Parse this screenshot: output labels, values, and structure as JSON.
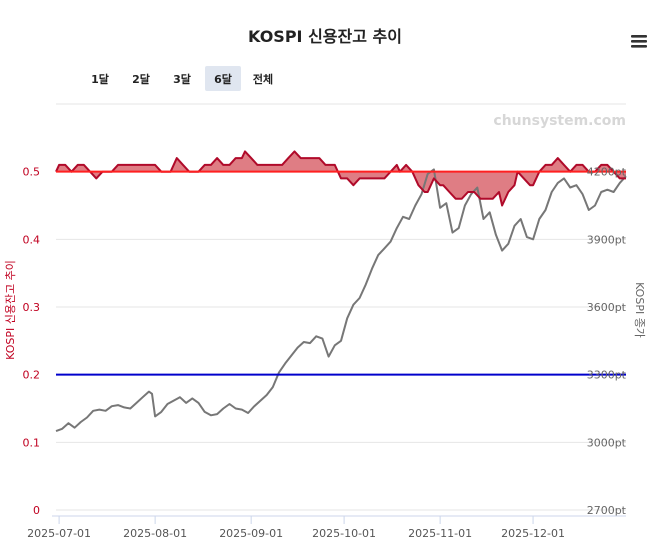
{
  "title": "KOSPI 신용잔고 추이",
  "watermark": "chunsystem.com",
  "range_buttons": [
    {
      "label": "1달",
      "selected": false
    },
    {
      "label": "2달",
      "selected": false
    },
    {
      "label": "3달",
      "selected": false
    },
    {
      "label": "6달",
      "selected": true
    },
    {
      "label": "전체",
      "selected": false
    }
  ],
  "menu_icon": "hamburger-menu-icon",
  "colors": {
    "credit_line": "#b00a2a",
    "credit_fill": "#d9666f",
    "credit_ref_line": "#ff2020",
    "kospi_line": "#777777",
    "kospi_ref_line": "#0000cc",
    "button_selected_bg": "#e0e6f0"
  },
  "chart_data": {
    "type": "line",
    "title": "KOSPI 신용잔고 추이",
    "x_start": "2025-06-30",
    "x_end": "2025-12-31",
    "x_tick_labels": [
      "2025-07-01",
      "2025-08-01",
      "2025-09-01",
      "2025-10-01",
      "2025-11-01",
      "2025-12-01"
    ],
    "y_left": {
      "label": "KOSPI 신용잔고 추이",
      "range": [
        0,
        0.6
      ],
      "ticks": [
        "0",
        "0.1",
        "0.2",
        "0.3",
        "0.4",
        "0.5"
      ]
    },
    "y_right": {
      "label": "KOSPI 종가",
      "range": [
        2700,
        4500
      ],
      "ticks": [
        "2700pt",
        "3000pt",
        "3300pt",
        "3600pt",
        "3900pt",
        "4200pt"
      ]
    },
    "reference_lines": {
      "credit": 0.5,
      "kospi": 3300
    },
    "series": [
      {
        "axis": "left",
        "style": "area-around-reference",
        "points": [
          [
            "2025-06-30",
            0.5
          ],
          [
            "2025-07-01",
            0.51
          ],
          [
            "2025-07-03",
            0.51
          ],
          [
            "2025-07-05",
            0.5
          ],
          [
            "2025-07-07",
            0.51
          ],
          [
            "2025-07-09",
            0.51
          ],
          [
            "2025-07-11",
            0.5
          ],
          [
            "2025-07-13",
            0.49
          ],
          [
            "2025-07-15",
            0.5
          ],
          [
            "2025-07-18",
            0.5
          ],
          [
            "2025-07-20",
            0.51
          ],
          [
            "2025-07-23",
            0.51
          ],
          [
            "2025-07-26",
            0.51
          ],
          [
            "2025-07-29",
            0.51
          ],
          [
            "2025-08-01",
            0.51
          ],
          [
            "2025-08-03",
            0.5
          ],
          [
            "2025-08-06",
            0.5
          ],
          [
            "2025-08-08",
            0.52
          ],
          [
            "2025-08-10",
            0.51
          ],
          [
            "2025-08-12",
            0.5
          ],
          [
            "2025-08-15",
            0.5
          ],
          [
            "2025-08-17",
            0.51
          ],
          [
            "2025-08-19",
            0.51
          ],
          [
            "2025-08-21",
            0.52
          ],
          [
            "2025-08-23",
            0.51
          ],
          [
            "2025-08-25",
            0.51
          ],
          [
            "2025-08-27",
            0.52
          ],
          [
            "2025-08-29",
            0.52
          ],
          [
            "2025-08-30",
            0.53
          ],
          [
            "2025-09-01",
            0.52
          ],
          [
            "2025-09-03",
            0.51
          ],
          [
            "2025-09-05",
            0.51
          ],
          [
            "2025-09-08",
            0.51
          ],
          [
            "2025-09-11",
            0.51
          ],
          [
            "2025-09-13",
            0.52
          ],
          [
            "2025-09-15",
            0.53
          ],
          [
            "2025-09-17",
            0.52
          ],
          [
            "2025-09-20",
            0.52
          ],
          [
            "2025-09-23",
            0.52
          ],
          [
            "2025-09-25",
            0.51
          ],
          [
            "2025-09-28",
            0.51
          ],
          [
            "2025-09-30",
            0.49
          ],
          [
            "2025-10-02",
            0.49
          ],
          [
            "2025-10-04",
            0.48
          ],
          [
            "2025-10-06",
            0.49
          ],
          [
            "2025-10-09",
            0.49
          ],
          [
            "2025-10-12",
            0.49
          ],
          [
            "2025-10-14",
            0.49
          ],
          [
            "2025-10-16",
            0.5
          ],
          [
            "2025-10-18",
            0.51
          ],
          [
            "2025-10-19",
            0.5
          ],
          [
            "2025-10-21",
            0.51
          ],
          [
            "2025-10-23",
            0.5
          ],
          [
            "2025-10-25",
            0.48
          ],
          [
            "2025-10-27",
            0.47
          ],
          [
            "2025-10-28",
            0.47
          ],
          [
            "2025-10-30",
            0.49
          ],
          [
            "2025-11-01",
            0.48
          ],
          [
            "2025-11-02",
            0.48
          ],
          [
            "2025-11-04",
            0.47
          ],
          [
            "2025-11-06",
            0.46
          ],
          [
            "2025-11-08",
            0.46
          ],
          [
            "2025-11-10",
            0.47
          ],
          [
            "2025-11-12",
            0.47
          ],
          [
            "2025-11-14",
            0.46
          ],
          [
            "2025-11-16",
            0.46
          ],
          [
            "2025-11-18",
            0.46
          ],
          [
            "2025-11-20",
            0.47
          ],
          [
            "2025-11-21",
            0.45
          ],
          [
            "2025-11-23",
            0.47
          ],
          [
            "2025-11-25",
            0.48
          ],
          [
            "2025-11-26",
            0.5
          ],
          [
            "2025-11-28",
            0.49
          ],
          [
            "2025-11-30",
            0.48
          ],
          [
            "2025-12-01",
            0.48
          ],
          [
            "2025-12-03",
            0.5
          ],
          [
            "2025-12-05",
            0.51
          ],
          [
            "2025-12-07",
            0.51
          ],
          [
            "2025-12-09",
            0.52
          ],
          [
            "2025-12-11",
            0.51
          ],
          [
            "2025-12-13",
            0.5
          ],
          [
            "2025-12-15",
            0.51
          ],
          [
            "2025-12-17",
            0.51
          ],
          [
            "2025-12-19",
            0.5
          ],
          [
            "2025-12-21",
            0.5
          ],
          [
            "2025-12-23",
            0.51
          ],
          [
            "2025-12-25",
            0.51
          ],
          [
            "2025-12-27",
            0.5
          ],
          [
            "2025-12-29",
            0.49
          ],
          [
            "2025-12-31",
            0.49
          ]
        ]
      },
      {
        "axis": "right",
        "style": "line",
        "points": [
          [
            "2025-06-30",
            3050
          ],
          [
            "2025-07-02",
            3060
          ],
          [
            "2025-07-04",
            3085
          ],
          [
            "2025-07-06",
            3065
          ],
          [
            "2025-07-08",
            3090
          ],
          [
            "2025-07-10",
            3110
          ],
          [
            "2025-07-12",
            3140
          ],
          [
            "2025-07-14",
            3145
          ],
          [
            "2025-07-16",
            3140
          ],
          [
            "2025-07-18",
            3160
          ],
          [
            "2025-07-20",
            3165
          ],
          [
            "2025-07-22",
            3155
          ],
          [
            "2025-07-24",
            3150
          ],
          [
            "2025-07-26",
            3175
          ],
          [
            "2025-07-28",
            3200
          ],
          [
            "2025-07-30",
            3225
          ],
          [
            "2025-07-31",
            3215
          ],
          [
            "2025-08-01",
            3115
          ],
          [
            "2025-08-03",
            3135
          ],
          [
            "2025-08-05",
            3170
          ],
          [
            "2025-08-07",
            3185
          ],
          [
            "2025-08-09",
            3200
          ],
          [
            "2025-08-11",
            3175
          ],
          [
            "2025-08-13",
            3195
          ],
          [
            "2025-08-15",
            3175
          ],
          [
            "2025-08-17",
            3135
          ],
          [
            "2025-08-19",
            3120
          ],
          [
            "2025-08-21",
            3125
          ],
          [
            "2025-08-23",
            3150
          ],
          [
            "2025-08-25",
            3170
          ],
          [
            "2025-08-27",
            3150
          ],
          [
            "2025-08-29",
            3145
          ],
          [
            "2025-08-31",
            3130
          ],
          [
            "2025-09-02",
            3160
          ],
          [
            "2025-09-04",
            3185
          ],
          [
            "2025-09-06",
            3210
          ],
          [
            "2025-09-08",
            3245
          ],
          [
            "2025-09-10",
            3310
          ],
          [
            "2025-09-12",
            3350
          ],
          [
            "2025-09-14",
            3385
          ],
          [
            "2025-09-16",
            3420
          ],
          [
            "2025-09-18",
            3445
          ],
          [
            "2025-09-20",
            3440
          ],
          [
            "2025-09-22",
            3470
          ],
          [
            "2025-09-24",
            3460
          ],
          [
            "2025-09-26",
            3380
          ],
          [
            "2025-09-28",
            3430
          ],
          [
            "2025-09-30",
            3450
          ],
          [
            "2025-10-02",
            3550
          ],
          [
            "2025-10-04",
            3610
          ],
          [
            "2025-10-06",
            3640
          ],
          [
            "2025-10-08",
            3700
          ],
          [
            "2025-10-10",
            3770
          ],
          [
            "2025-10-12",
            3830
          ],
          [
            "2025-10-14",
            3860
          ],
          [
            "2025-10-16",
            3890
          ],
          [
            "2025-10-18",
            3950
          ],
          [
            "2025-10-20",
            4000
          ],
          [
            "2025-10-22",
            3990
          ],
          [
            "2025-10-24",
            4050
          ],
          [
            "2025-10-26",
            4100
          ],
          [
            "2025-10-28",
            4190
          ],
          [
            "2025-10-30",
            4210
          ],
          [
            "2025-11-01",
            4040
          ],
          [
            "2025-11-03",
            4060
          ],
          [
            "2025-11-05",
            3930
          ],
          [
            "2025-11-07",
            3950
          ],
          [
            "2025-11-09",
            4050
          ],
          [
            "2025-11-11",
            4100
          ],
          [
            "2025-11-13",
            4130
          ],
          [
            "2025-11-15",
            3990
          ],
          [
            "2025-11-17",
            4020
          ],
          [
            "2025-11-19",
            3920
          ],
          [
            "2025-11-21",
            3850
          ],
          [
            "2025-11-23",
            3880
          ],
          [
            "2025-11-25",
            3960
          ],
          [
            "2025-11-27",
            3990
          ],
          [
            "2025-11-29",
            3910
          ],
          [
            "2025-12-01",
            3900
          ],
          [
            "2025-12-03",
            3990
          ],
          [
            "2025-12-05",
            4030
          ],
          [
            "2025-12-07",
            4110
          ],
          [
            "2025-12-09",
            4150
          ],
          [
            "2025-12-11",
            4170
          ],
          [
            "2025-12-13",
            4130
          ],
          [
            "2025-12-15",
            4140
          ],
          [
            "2025-12-17",
            4100
          ],
          [
            "2025-12-19",
            4030
          ],
          [
            "2025-12-21",
            4050
          ],
          [
            "2025-12-23",
            4110
          ],
          [
            "2025-12-25",
            4120
          ],
          [
            "2025-12-27",
            4110
          ],
          [
            "2025-12-29",
            4150
          ],
          [
            "2025-12-31",
            4180
          ]
        ]
      }
    ]
  }
}
